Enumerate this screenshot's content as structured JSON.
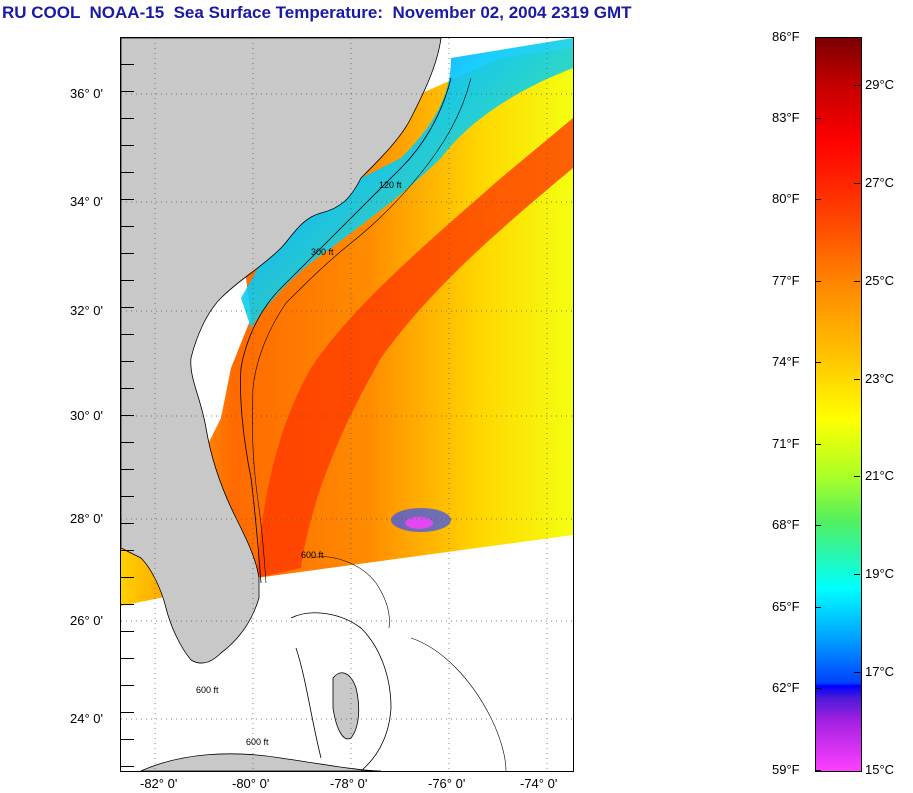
{
  "title": "RU COOL  NOAA-15  Sea Surface Temperature:  November 02, 2004 2319 GMT",
  "latitude_labels": [
    "36° 0'",
    "34° 0'",
    "32° 0'",
    "30° 0'",
    "28° 0'",
    "26° 0'",
    "24° 0'"
  ],
  "longitude_labels": [
    "-82° 0'",
    "-80° 0'",
    "-78° 0'",
    "-76° 0'",
    "-74° 0'"
  ],
  "colorbar": {
    "fahrenheit_labels": [
      "86°F",
      "83°F",
      "80°F",
      "77°F",
      "74°F",
      "71°F",
      "68°F",
      "65°F",
      "62°F",
      "59°F"
    ],
    "celsius_labels": [
      "29°C",
      "27°C",
      "25°C",
      "23°C",
      "21°C",
      "19°C",
      "17°C",
      "15°C"
    ],
    "fahrenheit_range": [
      59,
      86
    ],
    "celsius_range": [
      15,
      30
    ]
  },
  "contour_labels": [
    "120 ft",
    "300 ft",
    "600 ft",
    "600 ft",
    "600 ft"
  ],
  "colors": {
    "land": "#c8c8c8",
    "title": "#1a1aa6",
    "warm": "#ff4000",
    "cool": "#00ffff"
  }
}
